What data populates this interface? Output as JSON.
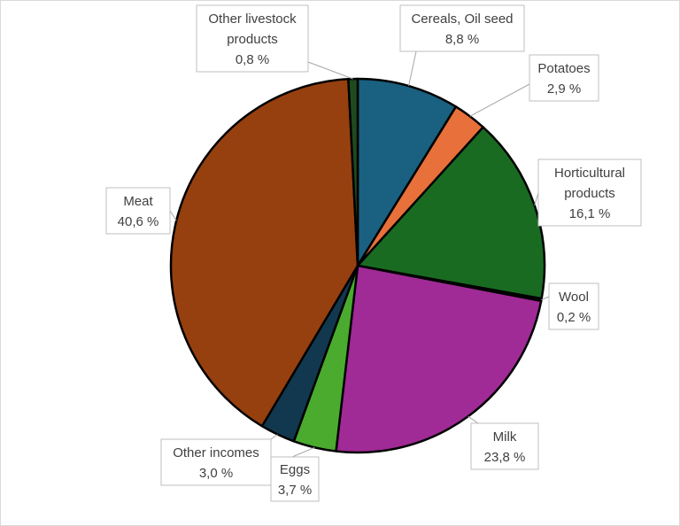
{
  "chart_data": {
    "type": "pie",
    "title": "",
    "legend": "none",
    "slices": [
      {
        "label": "Cereals, Oil seed",
        "label_lines": [
          "Cereals, Oil seed"
        ],
        "value": 8.8,
        "value_label": "8,8 %",
        "color": "#1a6080"
      },
      {
        "label": "Potatoes",
        "label_lines": [
          "Potatoes"
        ],
        "value": 2.9,
        "value_label": "2,9 %",
        "color": "#e8703a"
      },
      {
        "label": "Horticultural products",
        "label_lines": [
          "Horticultural",
          "products"
        ],
        "value": 16.1,
        "value_label": "16,1 %",
        "color": "#1a6b22"
      },
      {
        "label": "Wool",
        "label_lines": [
          "Wool"
        ],
        "value": 0.2,
        "value_label": "0,2 %",
        "color": "#3b2a6e"
      },
      {
        "label": "Milk",
        "label_lines": [
          "Milk"
        ],
        "value": 23.8,
        "value_label": "23,8 %",
        "color": "#a02a96"
      },
      {
        "label": "Eggs",
        "label_lines": [
          "Eggs"
        ],
        "value": 3.7,
        "value_label": "3,7 %",
        "color": "#4aab2e"
      },
      {
        "label": "Other incomes",
        "label_lines": [
          "Other incomes"
        ],
        "value": 3.0,
        "value_label": "3,0 %",
        "color": "#12384f"
      },
      {
        "label": "Meat",
        "label_lines": [
          "Meat"
        ],
        "value": 40.6,
        "value_label": "40,6 %",
        "color": "#96400f"
      },
      {
        "label": "Other livestock products",
        "label_lines": [
          "Other livestock",
          "products"
        ],
        "value": 0.8,
        "value_label": "0,8 %",
        "color": "#1f4a1f"
      }
    ]
  }
}
